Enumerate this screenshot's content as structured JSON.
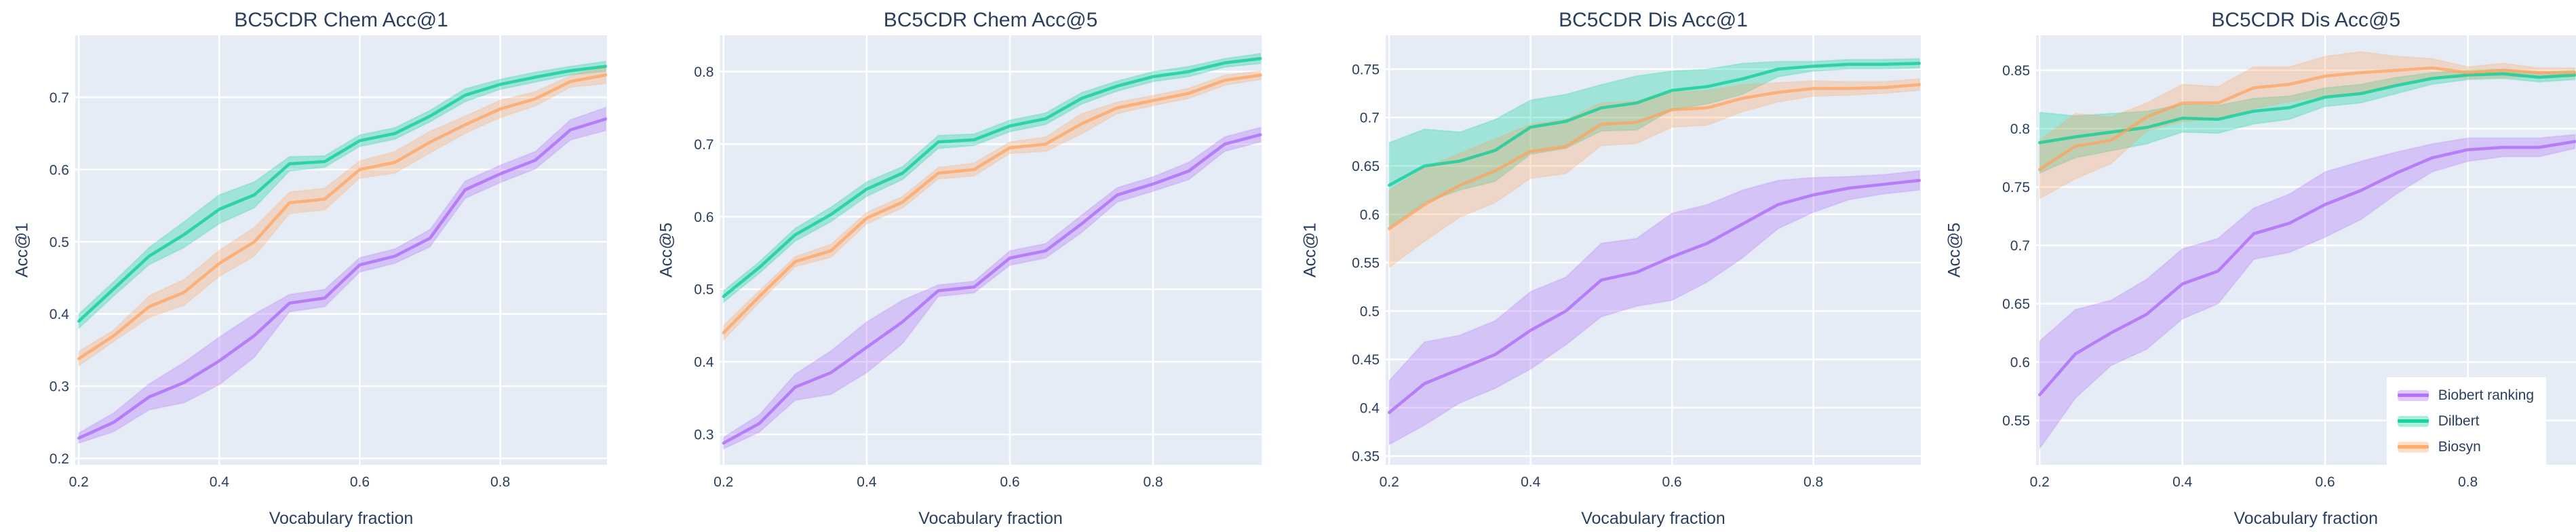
{
  "figure": {
    "background_color": "#ffffff",
    "plot_background_color": "#E5ECF6",
    "grid_color": "#ffffff",
    "text_color": "#2a3f5f",
    "legend": {
      "position": "bottom-right",
      "background_color": "#ffffff",
      "items": [
        {
          "label": "Biobert ranking",
          "color": "#AB63FA"
        },
        {
          "label": "Dilbert",
          "color": "#00CC96"
        },
        {
          "label": "Biosyn",
          "color": "#FFA15A"
        }
      ]
    }
  },
  "chart_data": [
    {
      "type": "line",
      "title": "BC5CDR Chem Acc@1",
      "xlabel": "Vocabulary fraction",
      "ylabel": "Acc@1",
      "grid": true,
      "x": [
        0.2,
        0.25,
        0.3,
        0.35,
        0.4,
        0.45,
        0.5,
        0.55,
        0.6,
        0.65,
        0.7,
        0.75,
        0.8,
        0.85,
        0.9,
        0.95
      ],
      "x_ticks": [
        0.2,
        0.4,
        0.6,
        0.8
      ],
      "y_ticks": [
        0.2,
        0.3,
        0.4,
        0.5,
        0.6,
        0.7
      ],
      "x_range": [
        0.195,
        0.952
      ],
      "y_range": [
        0.191,
        0.786
      ],
      "series": [
        {
          "name": "Biobert ranking",
          "color": "#AB63FA",
          "values": [
            0.228,
            0.25,
            0.285,
            0.305,
            0.335,
            0.37,
            0.415,
            0.422,
            0.468,
            0.48,
            0.505,
            0.572,
            0.594,
            0.613,
            0.655,
            0.67
          ],
          "lower": [
            0.221,
            0.237,
            0.267,
            0.277,
            0.302,
            0.34,
            0.403,
            0.41,
            0.458,
            0.47,
            0.493,
            0.56,
            0.582,
            0.601,
            0.641,
            0.654
          ],
          "upper": [
            0.235,
            0.263,
            0.303,
            0.333,
            0.368,
            0.4,
            0.427,
            0.434,
            0.478,
            0.49,
            0.517,
            0.584,
            0.606,
            0.625,
            0.669,
            0.686
          ]
        },
        {
          "name": "Dilbert",
          "color": "#00CC96",
          "values": [
            0.39,
            0.435,
            0.48,
            0.51,
            0.545,
            0.565,
            0.608,
            0.611,
            0.64,
            0.65,
            0.674,
            0.703,
            0.718,
            0.728,
            0.737,
            0.743
          ],
          "lower": [
            0.38,
            0.425,
            0.468,
            0.492,
            0.525,
            0.547,
            0.598,
            0.603,
            0.632,
            0.642,
            0.666,
            0.694,
            0.711,
            0.721,
            0.731,
            0.736
          ],
          "upper": [
            0.4,
            0.445,
            0.492,
            0.528,
            0.565,
            0.583,
            0.618,
            0.619,
            0.648,
            0.658,
            0.682,
            0.712,
            0.725,
            0.735,
            0.743,
            0.75
          ]
        },
        {
          "name": "Biosyn",
          "color": "#FFA15A",
          "values": [
            0.338,
            0.37,
            0.41,
            0.43,
            0.47,
            0.5,
            0.554,
            0.559,
            0.6,
            0.61,
            0.638,
            0.662,
            0.684,
            0.698,
            0.722,
            0.731
          ],
          "lower": [
            0.328,
            0.362,
            0.395,
            0.412,
            0.452,
            0.48,
            0.539,
            0.544,
            0.588,
            0.595,
            0.623,
            0.65,
            0.672,
            0.688,
            0.714,
            0.719
          ],
          "upper": [
            0.348,
            0.378,
            0.425,
            0.448,
            0.488,
            0.52,
            0.569,
            0.574,
            0.612,
            0.625,
            0.653,
            0.674,
            0.696,
            0.708,
            0.73,
            0.743
          ]
        }
      ]
    },
    {
      "type": "line",
      "title": "BC5CDR Chem Acc@5",
      "xlabel": "Vocabulary fraction",
      "ylabel": "Acc@5",
      "grid": true,
      "x": [
        0.2,
        0.25,
        0.3,
        0.35,
        0.4,
        0.45,
        0.5,
        0.55,
        0.6,
        0.65,
        0.7,
        0.75,
        0.8,
        0.85,
        0.9,
        0.95
      ],
      "x_ticks": [
        0.2,
        0.4,
        0.6,
        0.8
      ],
      "y_ticks": [
        0.3,
        0.4,
        0.5,
        0.6,
        0.7,
        0.8
      ],
      "x_range": [
        0.195,
        0.952
      ],
      "y_range": [
        0.258,
        0.85
      ],
      "series": [
        {
          "name": "Biobert ranking",
          "color": "#AB63FA",
          "values": [
            0.288,
            0.315,
            0.365,
            0.385,
            0.42,
            0.455,
            0.498,
            0.503,
            0.543,
            0.553,
            0.59,
            0.63,
            0.645,
            0.663,
            0.7,
            0.713
          ],
          "lower": [
            0.28,
            0.303,
            0.347,
            0.355,
            0.385,
            0.425,
            0.49,
            0.495,
            0.533,
            0.543,
            0.578,
            0.62,
            0.635,
            0.651,
            0.69,
            0.703
          ],
          "upper": [
            0.296,
            0.327,
            0.383,
            0.415,
            0.455,
            0.485,
            0.506,
            0.511,
            0.553,
            0.563,
            0.602,
            0.64,
            0.655,
            0.675,
            0.71,
            0.723
          ]
        },
        {
          "name": "Dilbert",
          "color": "#00CC96",
          "values": [
            0.49,
            0.53,
            0.575,
            0.603,
            0.638,
            0.66,
            0.703,
            0.706,
            0.725,
            0.735,
            0.763,
            0.78,
            0.793,
            0.8,
            0.812,
            0.818
          ],
          "lower": [
            0.482,
            0.522,
            0.566,
            0.593,
            0.628,
            0.651,
            0.694,
            0.698,
            0.717,
            0.727,
            0.755,
            0.773,
            0.786,
            0.793,
            0.806,
            0.811
          ],
          "upper": [
            0.498,
            0.538,
            0.584,
            0.613,
            0.648,
            0.669,
            0.712,
            0.714,
            0.733,
            0.743,
            0.771,
            0.787,
            0.8,
            0.807,
            0.818,
            0.825
          ]
        },
        {
          "name": "Biosyn",
          "color": "#FFA15A",
          "values": [
            0.44,
            0.49,
            0.538,
            0.553,
            0.598,
            0.62,
            0.66,
            0.665,
            0.695,
            0.7,
            0.728,
            0.75,
            0.76,
            0.77,
            0.788,
            0.795
          ],
          "lower": [
            0.43,
            0.482,
            0.531,
            0.544,
            0.59,
            0.612,
            0.652,
            0.656,
            0.687,
            0.69,
            0.714,
            0.742,
            0.753,
            0.763,
            0.781,
            0.789
          ],
          "upper": [
            0.45,
            0.498,
            0.545,
            0.562,
            0.606,
            0.628,
            0.668,
            0.674,
            0.703,
            0.71,
            0.742,
            0.758,
            0.767,
            0.777,
            0.795,
            0.801
          ]
        }
      ]
    },
    {
      "type": "line",
      "title": "BC5CDR Dis Acc@1",
      "xlabel": "Vocabulary fraction",
      "ylabel": "Acc@1",
      "grid": true,
      "x": [
        0.2,
        0.25,
        0.3,
        0.35,
        0.4,
        0.45,
        0.5,
        0.55,
        0.6,
        0.65,
        0.7,
        0.75,
        0.8,
        0.85,
        0.9,
        0.95
      ],
      "x_ticks": [
        0.2,
        0.4,
        0.6,
        0.8
      ],
      "y_ticks": [
        0.35,
        0.4,
        0.45,
        0.5,
        0.55,
        0.6,
        0.65,
        0.7,
        0.75
      ],
      "x_range": [
        0.195,
        0.952
      ],
      "y_range": [
        0.341,
        0.785
      ],
      "series": [
        {
          "name": "Biobert ranking",
          "color": "#AB63FA",
          "values": [
            0.395,
            0.425,
            0.44,
            0.455,
            0.48,
            0.5,
            0.532,
            0.54,
            0.556,
            0.57,
            0.59,
            0.61,
            0.62,
            0.627,
            0.631,
            0.635
          ],
          "lower": [
            0.362,
            0.382,
            0.405,
            0.42,
            0.44,
            0.465,
            0.494,
            0.505,
            0.511,
            0.53,
            0.555,
            0.585,
            0.602,
            0.615,
            0.621,
            0.625
          ],
          "upper": [
            0.428,
            0.468,
            0.475,
            0.49,
            0.52,
            0.535,
            0.57,
            0.575,
            0.601,
            0.61,
            0.625,
            0.635,
            0.638,
            0.639,
            0.641,
            0.645
          ]
        },
        {
          "name": "Dilbert",
          "color": "#00CC96",
          "values": [
            0.63,
            0.65,
            0.655,
            0.666,
            0.69,
            0.696,
            0.71,
            0.715,
            0.728,
            0.732,
            0.74,
            0.75,
            0.753,
            0.755,
            0.755,
            0.756
          ],
          "lower": [
            0.586,
            0.612,
            0.625,
            0.634,
            0.662,
            0.668,
            0.686,
            0.687,
            0.708,
            0.714,
            0.724,
            0.742,
            0.748,
            0.75,
            0.75,
            0.751
          ],
          "upper": [
            0.674,
            0.688,
            0.685,
            0.698,
            0.718,
            0.724,
            0.734,
            0.743,
            0.748,
            0.75,
            0.756,
            0.758,
            0.758,
            0.76,
            0.76,
            0.761
          ]
        },
        {
          "name": "Biosyn",
          "color": "#FFA15A",
          "values": [
            0.585,
            0.61,
            0.63,
            0.645,
            0.665,
            0.67,
            0.693,
            0.695,
            0.708,
            0.71,
            0.72,
            0.726,
            0.73,
            0.73,
            0.731,
            0.734
          ],
          "lower": [
            0.545,
            0.572,
            0.597,
            0.612,
            0.637,
            0.642,
            0.671,
            0.673,
            0.69,
            0.692,
            0.706,
            0.716,
            0.722,
            0.723,
            0.725,
            0.728
          ],
          "upper": [
            0.625,
            0.648,
            0.663,
            0.678,
            0.693,
            0.698,
            0.715,
            0.717,
            0.726,
            0.728,
            0.734,
            0.736,
            0.738,
            0.737,
            0.737,
            0.74
          ]
        }
      ]
    },
    {
      "type": "line",
      "title": "BC5CDR Dis Acc@5",
      "xlabel": "Vocabulary fraction",
      "ylabel": "Acc@5",
      "grid": true,
      "x": [
        0.2,
        0.25,
        0.3,
        0.35,
        0.4,
        0.45,
        0.5,
        0.55,
        0.6,
        0.65,
        0.7,
        0.75,
        0.8,
        0.85,
        0.9,
        0.95
      ],
      "x_ticks": [
        0.2,
        0.4,
        0.6,
        0.8
      ],
      "y_ticks": [
        0.55,
        0.6,
        0.65,
        0.7,
        0.75,
        0.8,
        0.85
      ],
      "x_range": [
        0.195,
        0.952
      ],
      "y_range": [
        0.512,
        0.88
      ],
      "series": [
        {
          "name": "Biobert ranking",
          "color": "#AB63FA",
          "values": [
            0.572,
            0.607,
            0.625,
            0.641,
            0.667,
            0.678,
            0.71,
            0.719,
            0.735,
            0.747,
            0.762,
            0.775,
            0.782,
            0.784,
            0.784,
            0.789
          ],
          "lower": [
            0.526,
            0.569,
            0.597,
            0.611,
            0.637,
            0.65,
            0.688,
            0.694,
            0.707,
            0.722,
            0.744,
            0.763,
            0.772,
            0.776,
            0.776,
            0.783
          ],
          "upper": [
            0.618,
            0.645,
            0.653,
            0.671,
            0.697,
            0.706,
            0.732,
            0.744,
            0.763,
            0.772,
            0.78,
            0.787,
            0.792,
            0.792,
            0.792,
            0.795
          ]
        },
        {
          "name": "Dilbert",
          "color": "#00CC96",
          "values": [
            0.788,
            0.793,
            0.797,
            0.801,
            0.809,
            0.808,
            0.815,
            0.818,
            0.827,
            0.83,
            0.837,
            0.843,
            0.846,
            0.847,
            0.844,
            0.846
          ],
          "lower": [
            0.762,
            0.775,
            0.781,
            0.787,
            0.797,
            0.796,
            0.804,
            0.808,
            0.819,
            0.822,
            0.83,
            0.838,
            0.842,
            0.843,
            0.84,
            0.842
          ],
          "upper": [
            0.814,
            0.811,
            0.813,
            0.815,
            0.821,
            0.82,
            0.826,
            0.828,
            0.835,
            0.838,
            0.844,
            0.848,
            0.85,
            0.851,
            0.848,
            0.85
          ]
        },
        {
          "name": "Biosyn",
          "color": "#FFA15A",
          "values": [
            0.765,
            0.785,
            0.79,
            0.81,
            0.822,
            0.822,
            0.835,
            0.838,
            0.845,
            0.848,
            0.85,
            0.852,
            0.848,
            0.85,
            0.848,
            0.848
          ],
          "lower": [
            0.74,
            0.757,
            0.77,
            0.798,
            0.806,
            0.808,
            0.817,
            0.823,
            0.828,
            0.83,
            0.838,
            0.844,
            0.843,
            0.844,
            0.844,
            0.844
          ],
          "upper": [
            0.79,
            0.813,
            0.81,
            0.822,
            0.838,
            0.836,
            0.853,
            0.853,
            0.862,
            0.866,
            0.862,
            0.86,
            0.853,
            0.856,
            0.852,
            0.852
          ]
        }
      ]
    }
  ]
}
